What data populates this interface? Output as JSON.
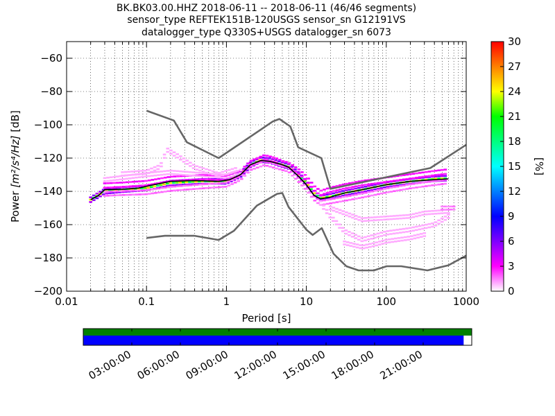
{
  "chart_data": {
    "type": "heatmap",
    "title_lines": [
      "BK.BK03.00.HHZ   2018-06-11 -- 2018-06-11  (46/46 segments)",
      "sensor_type REFTEK151B-120USGS sensor_sn G12191VS",
      "datalogger_type Q330S+USGS datalogger_sn 6073"
    ],
    "xlabel": "Period [s]",
    "ylabel_main": "Power ",
    "ylabel_units": "[m²/s⁴/Hz]",
    "ylabel_tail": " [dB]",
    "x_scale": "log",
    "xlim": [
      0.01,
      1000
    ],
    "ylim": [
      -200,
      -50
    ],
    "x_ticks": [
      {
        "value": 0.01,
        "label": "0.01"
      },
      {
        "value": 0.1,
        "label": "0.1"
      },
      {
        "value": 1,
        "label": "1"
      },
      {
        "value": 10,
        "label": "10"
      },
      {
        "value": 100,
        "label": "100"
      },
      {
        "value": 1000,
        "label": "1000"
      }
    ],
    "y_ticks": [
      {
        "value": -60,
        "label": "−60"
      },
      {
        "value": -80,
        "label": "−80"
      },
      {
        "value": -100,
        "label": "−100"
      },
      {
        "value": -120,
        "label": "−120"
      },
      {
        "value": -140,
        "label": "−140"
      },
      {
        "value": -160,
        "label": "−160"
      },
      {
        "value": -180,
        "label": "−180"
      },
      {
        "value": -200,
        "label": "−200"
      }
    ],
    "grid": true,
    "colorbar": {
      "label": "[%]",
      "range": [
        0,
        30
      ],
      "ticks": [
        {
          "value": 0,
          "label": "0"
        },
        {
          "value": 3,
          "label": "3"
        },
        {
          "value": 6,
          "label": "6"
        },
        {
          "value": 9,
          "label": "9"
        },
        {
          "value": 12,
          "label": "12"
        },
        {
          "value": 15,
          "label": "15"
        },
        {
          "value": 18,
          "label": "18"
        },
        {
          "value": 21,
          "label": "21"
        },
        {
          "value": 24,
          "label": "24"
        },
        {
          "value": 27,
          "label": "27"
        },
        {
          "value": 30,
          "label": "30"
        }
      ],
      "stops": [
        "#ffffff",
        "#ff00ff",
        "#7f00ff",
        "#0000ff",
        "#0080ff",
        "#00ffff",
        "#00ff80",
        "#00ff00",
        "#ffff00",
        "#ff8000",
        "#ff0000"
      ]
    },
    "noise_model_high": [
      [
        0.1,
        -91.5
      ],
      [
        0.22,
        -97.4
      ],
      [
        0.32,
        -110.5
      ],
      [
        0.8,
        -120
      ],
      [
        3.8,
        -98
      ],
      [
        4.6,
        -96.5
      ],
      [
        6.3,
        -101
      ],
      [
        7.9,
        -113.5
      ],
      [
        15.4,
        -120
      ],
      [
        20,
        -138.5
      ],
      [
        354.8,
        -126
      ],
      [
        1000,
        -112
      ]
    ],
    "noise_model_low": [
      [
        0.1,
        -168
      ],
      [
        0.17,
        -166.7
      ],
      [
        0.4,
        -166.7
      ],
      [
        0.8,
        -169.2
      ],
      [
        1.24,
        -163.7
      ],
      [
        2.4,
        -148.6
      ],
      [
        4.3,
        -141.5
      ],
      [
        5,
        -141
      ],
      [
        6,
        -149.4
      ],
      [
        10,
        -163
      ],
      [
        12,
        -166.2
      ],
      [
        15.6,
        -162.1
      ],
      [
        21.9,
        -177.5
      ],
      [
        31.6,
        -185
      ],
      [
        45,
        -187.5
      ],
      [
        70,
        -187.5
      ],
      [
        101,
        -185
      ],
      [
        154,
        -185
      ],
      [
        328,
        -187.5
      ],
      [
        600,
        -184.4
      ],
      [
        1000,
        -178.6
      ]
    ],
    "median_psd": [
      [
        0.02,
        -145
      ],
      [
        0.025,
        -142.5
      ],
      [
        0.03,
        -139
      ],
      [
        0.05,
        -138.7
      ],
      [
        0.08,
        -138
      ],
      [
        0.11,
        -136.5
      ],
      [
        0.2,
        -134
      ],
      [
        0.4,
        -133.5
      ],
      [
        0.8,
        -134
      ],
      [
        1.1,
        -133
      ],
      [
        1.5,
        -130
      ],
      [
        2,
        -124
      ],
      [
        2.7,
        -121.5
      ],
      [
        3.5,
        -122
      ],
      [
        5,
        -124
      ],
      [
        6,
        -125.5
      ],
      [
        8,
        -131
      ],
      [
        10,
        -136
      ],
      [
        12.5,
        -142.5
      ],
      [
        15,
        -144.5
      ],
      [
        20,
        -143.5
      ],
      [
        30,
        -141
      ],
      [
        50,
        -139
      ],
      [
        100,
        -136
      ],
      [
        200,
        -134
      ],
      [
        400,
        -133
      ],
      [
        600,
        -132.5
      ]
    ],
    "density_bands": [
      {
        "pts": [
          [
            0.02,
            -145
          ],
          [
            0.03,
            -140
          ],
          [
            0.05,
            -139
          ],
          [
            0.1,
            -138
          ],
          [
            0.2,
            -135
          ],
          [
            0.5,
            -134
          ],
          [
            1,
            -134
          ],
          [
            1.5,
            -130
          ],
          [
            2,
            -124
          ],
          [
            2.7,
            -121
          ],
          [
            3.5,
            -121.5
          ],
          [
            5,
            -124
          ],
          [
            6,
            -125
          ],
          [
            8,
            -130
          ],
          [
            10,
            -135
          ],
          [
            12.5,
            -141
          ],
          [
            15,
            -144
          ],
          [
            20,
            -143
          ],
          [
            30,
            -141
          ],
          [
            50,
            -139
          ],
          [
            100,
            -136
          ],
          [
            200,
            -134
          ],
          [
            400,
            -132.5
          ],
          [
            600,
            -132
          ]
        ],
        "half_width": 1.4,
        "pct": 22
      },
      {
        "pts": [
          [
            0.03,
            -136.5
          ],
          [
            0.05,
            -136
          ],
          [
            0.1,
            -135
          ],
          [
            0.2,
            -132.5
          ],
          [
            0.5,
            -131.5
          ],
          [
            1,
            -132
          ],
          [
            1.5,
            -129
          ],
          [
            2,
            -123
          ],
          [
            3,
            -119.5
          ],
          [
            4,
            -121
          ],
          [
            5,
            -123
          ],
          [
            6,
            -124
          ],
          [
            8,
            -128
          ],
          [
            10,
            -132
          ],
          [
            12.5,
            -138
          ],
          [
            15,
            -141
          ],
          [
            20,
            -139
          ],
          [
            30,
            -137
          ],
          [
            50,
            -135
          ],
          [
            100,
            -133
          ],
          [
            200,
            -131
          ],
          [
            400,
            -129
          ],
          [
            600,
            -128
          ]
        ],
        "half_width": 1.3,
        "pct": 12
      },
      {
        "pts": [
          [
            0.03,
            -141.5
          ],
          [
            0.05,
            -141
          ],
          [
            0.1,
            -140.5
          ],
          [
            0.2,
            -138.5
          ],
          [
            0.5,
            -137
          ],
          [
            1,
            -136
          ],
          [
            1.5,
            -132
          ],
          [
            2,
            -126
          ],
          [
            3,
            -123
          ],
          [
            5,
            -126
          ],
          [
            6,
            -127
          ],
          [
            8,
            -133
          ],
          [
            10,
            -138
          ],
          [
            12.5,
            -144
          ],
          [
            15,
            -147
          ],
          [
            20,
            -146
          ],
          [
            30,
            -144.5
          ],
          [
            50,
            -142.5
          ],
          [
            100,
            -139.5
          ],
          [
            200,
            -137
          ],
          [
            400,
            -135
          ],
          [
            600,
            -134
          ]
        ],
        "half_width": 1.2,
        "pct": 7
      },
      {
        "pts": [
          [
            0.05,
            -129.5
          ],
          [
            0.1,
            -128.5
          ],
          [
            0.15,
            -125
          ],
          [
            0.18,
            -115
          ],
          [
            0.25,
            -119
          ],
          [
            0.4,
            -125.5
          ],
          [
            0.8,
            -130
          ],
          [
            1.3,
            -127
          ]
        ],
        "half_width": 1.0,
        "pct": 2
      },
      {
        "pts": [
          [
            0.03,
            -133
          ],
          [
            0.1,
            -130
          ],
          [
            0.2,
            -128.5
          ],
          [
            0.5,
            -130
          ],
          [
            1,
            -131
          ],
          [
            1.5,
            -128
          ]
        ],
        "half_width": 1.0,
        "pct": 1
      },
      {
        "pts": [
          [
            15,
            -147
          ],
          [
            20,
            -155
          ],
          [
            30,
            -164
          ],
          [
            50,
            -169
          ],
          [
            100,
            -165
          ],
          [
            200,
            -163
          ],
          [
            400,
            -160
          ],
          [
            600,
            -155
          ]
        ],
        "half_width": 1.0,
        "pct": 1
      },
      {
        "pts": [
          [
            30,
            -171
          ],
          [
            50,
            -173.5
          ],
          [
            70,
            -172
          ],
          [
            100,
            -170
          ],
          [
            200,
            -168
          ],
          [
            300,
            -166
          ]
        ],
        "half_width": 0.9,
        "pct": 1
      },
      {
        "pts": [
          [
            20,
            -150
          ],
          [
            50,
            -157
          ],
          [
            100,
            -156
          ],
          [
            200,
            -155
          ],
          [
            300,
            -153
          ],
          [
            600,
            -152
          ]
        ],
        "half_width": 0.9,
        "pct": 2
      },
      {
        "pts": [
          [
            500,
            -150
          ],
          [
            700,
            -150
          ]
        ],
        "half_width": 0.9,
        "pct": 6
      }
    ],
    "timeline": {
      "tick_labels": [
        "03:00:00",
        "06:00:00",
        "09:00:00",
        "12:00:00",
        "15:00:00",
        "18:00:00",
        "21:00:00"
      ],
      "tick_hours": [
        3,
        6,
        9,
        12,
        15,
        18,
        21
      ],
      "span_hours": 24,
      "data_coverage_end_hours": 23.5,
      "gaps_color": "#008000",
      "data_color": "#0000ff"
    },
    "line_colors": {
      "noise_models": "#666666",
      "median": "#000000"
    }
  }
}
